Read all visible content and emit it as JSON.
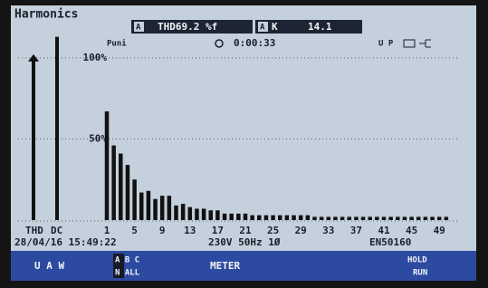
{
  "header": {
    "title": "Harmonics",
    "readout1": {
      "label": "A",
      "text": "THD69.2 %f"
    },
    "readout2": {
      "label": "A",
      "name": "K",
      "value": "14.1"
    }
  },
  "status": {
    "mode": "Puni",
    "timer": "0:00:33",
    "icons": "U P"
  },
  "chart_data": {
    "type": "bar",
    "categories": [
      "THD",
      "DC",
      "1",
      null,
      null,
      null,
      "5",
      null,
      null,
      null,
      "9",
      null,
      null,
      null,
      "13",
      null,
      null,
      null,
      "17",
      null,
      null,
      null,
      "21",
      null,
      null,
      null,
      "25",
      null,
      null,
      null,
      "29",
      null,
      null,
      null,
      "33",
      null,
      null,
      null,
      "37",
      null,
      null,
      null,
      "41",
      null,
      null,
      null,
      "45",
      null,
      null,
      null,
      "49",
      null
    ],
    "values": [
      100,
      113,
      67,
      46,
      41,
      34,
      25,
      17,
      18,
      13,
      15,
      15,
      9,
      10,
      8,
      7,
      7,
      6,
      6,
      4,
      4,
      4,
      4,
      3,
      3,
      3,
      3,
      3,
      3,
      3,
      3,
      3,
      2,
      2,
      2,
      2,
      2,
      2,
      2,
      2,
      2,
      2,
      2,
      2,
      2,
      2,
      2,
      2,
      2,
      2,
      2,
      2
    ],
    "color": "#111111",
    "ylim": [
      0,
      115
    ],
    "yticks": [
      {
        "value": 50,
        "label": "50%"
      },
      {
        "value": 100,
        "label": "100%"
      }
    ],
    "grid": true
  },
  "footer": {
    "datetime": "28/04/16 15:49:22",
    "supply": "230V 50Hz 1Ø",
    "standard": "EN50160"
  },
  "softkeys": {
    "key1": "U  A  W",
    "key2_top": "A  B  C",
    "key2_bottom": "N  ALL",
    "key3": "METER",
    "key5_top": "HOLD",
    "key5_bottom": "RUN"
  }
}
